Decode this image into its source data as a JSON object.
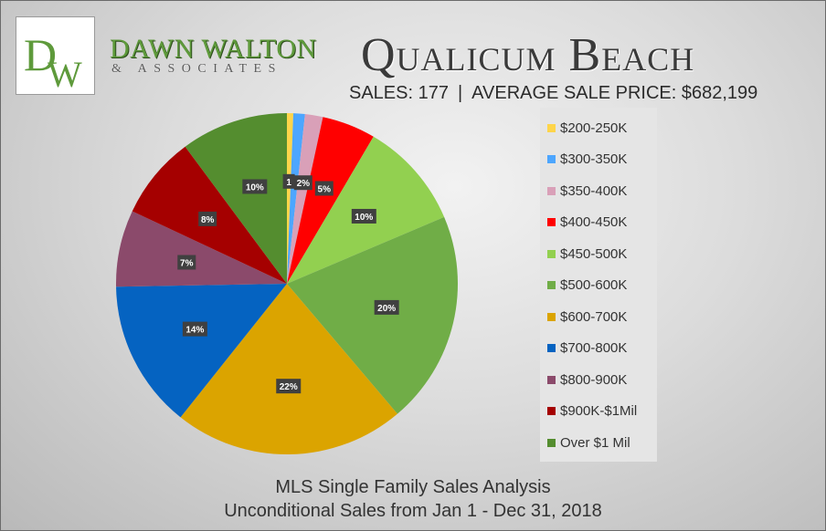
{
  "brand": {
    "logo_initials": "DW",
    "name": "DAWN WALTON",
    "subtitle": "& ASSOCIATES"
  },
  "header": {
    "title": "Qualicum Beach",
    "sales_label": "SALES: 177",
    "separator": "|",
    "avg_price_label": "AVERAGE SALE PRICE: $682,199"
  },
  "footer": {
    "line1": "MLS Single Family Sales Analysis",
    "line2": "Unconditional Sales from Jan 1 - Dec 31, 2018"
  },
  "chart_data": {
    "type": "pie",
    "title": "",
    "legend_position": "right",
    "slices": [
      {
        "label": "$200-250K",
        "value": 0.6,
        "display": "1",
        "color": "#ffd54a"
      },
      {
        "label": "$300-350K",
        "value": 1.1,
        "display": "",
        "color": "#4da6ff"
      },
      {
        "label": "$350-400K",
        "value": 1.7,
        "display": "2%",
        "color": "#d9a0b8"
      },
      {
        "label": "$400-450K",
        "value": 5.1,
        "display": "5%",
        "color": "#ff0000"
      },
      {
        "label": "$450-500K",
        "value": 10.2,
        "display": "10%",
        "color": "#92d050"
      },
      {
        "label": "$500-600K",
        "value": 20.3,
        "display": "20%",
        "color": "#70ad47"
      },
      {
        "label": "$600-700K",
        "value": 22.0,
        "display": "22%",
        "color": "#dba400"
      },
      {
        "label": "$700-800K",
        "value": 14.1,
        "display": "14%",
        "color": "#0563c1"
      },
      {
        "label": "$800-900K",
        "value": 7.3,
        "display": "7%",
        "color": "#8b4a6b"
      },
      {
        "label": "$900K-$1Mil",
        "value": 7.9,
        "display": "8%",
        "color": "#a50000"
      },
      {
        "label": "Over $1 Mil",
        "value": 10.2,
        "display": "10%",
        "color": "#548d2f"
      }
    ]
  }
}
